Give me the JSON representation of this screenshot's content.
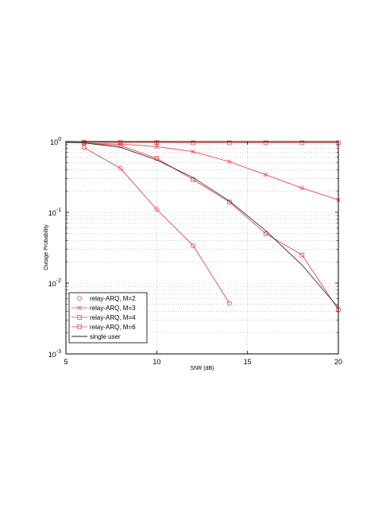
{
  "chart_data": {
    "type": "line",
    "xlabel": "SNR (dB)",
    "ylabel": "Outage Probability",
    "xlim": [
      5,
      20
    ],
    "ylim": [
      0.001,
      1
    ],
    "yscale": "log",
    "grid": true,
    "legend_position": "bottom-left",
    "x_ticks": [
      "5",
      "10",
      "15",
      "20"
    ],
    "y_ticks": [
      {
        "base": "10",
        "exp": "0"
      },
      {
        "base": "10",
        "exp": "-1"
      },
      {
        "base": "10",
        "exp": "-2"
      },
      {
        "base": "10",
        "exp": "-3"
      }
    ],
    "series": [
      {
        "name": "relay-ARQ, M=2",
        "marker": "circle",
        "color": "#e8494d",
        "x": [
          6,
          8,
          10,
          12,
          14
        ],
        "y": [
          0.82,
          0.42,
          0.11,
          0.034,
          0.0052
        ]
      },
      {
        "name": "relay-ARQ, M=3",
        "marker": "x",
        "color": "#e8494d",
        "x": [
          6,
          8,
          10,
          12,
          14,
          16,
          18,
          20
        ],
        "y": [
          0.95,
          0.92,
          0.85,
          0.72,
          0.52,
          0.34,
          0.22,
          0.15
        ]
      },
      {
        "name": "relay-ARQ, M=4",
        "marker": "square",
        "color": "#e8494d",
        "x": [
          6,
          8,
          10,
          12,
          14,
          16,
          18,
          20
        ],
        "y": [
          0.98,
          0.97,
          0.97,
          0.96,
          0.96,
          0.96,
          0.96,
          0.96
        ]
      },
      {
        "name": "relay-ARQ, M=6",
        "marker": "square",
        "color": "#e8494d",
        "x": [
          6,
          8,
          10,
          12,
          14,
          16,
          18,
          20
        ],
        "y": [
          0.95,
          0.88,
          0.58,
          0.29,
          0.14,
          0.05,
          0.025,
          0.0042
        ]
      },
      {
        "name": "single user",
        "marker": "none",
        "color": "#222222",
        "x": [
          5,
          6,
          8,
          10,
          12,
          14,
          16,
          18,
          20
        ],
        "y": [
          0.97,
          0.96,
          0.83,
          0.55,
          0.31,
          0.145,
          0.055,
          0.018,
          0.0045
        ]
      }
    ]
  }
}
